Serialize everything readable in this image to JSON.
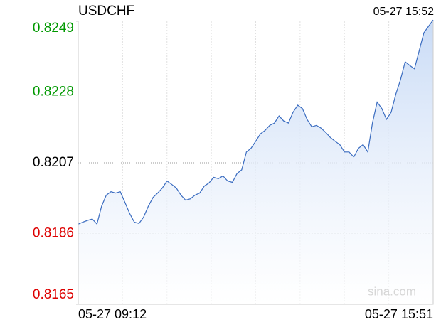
{
  "chart_data": {
    "type": "line",
    "title": "USDCHF",
    "subtitle": "05-27 15:52",
    "watermark": "sina.com",
    "categories": [
      "05-27 09:12",
      null,
      null,
      null,
      null,
      null,
      null,
      null,
      null,
      null,
      null,
      null,
      null,
      null,
      null,
      null,
      null,
      null,
      null,
      null,
      null,
      null,
      null,
      null,
      null,
      null,
      null,
      null,
      null,
      null,
      null,
      null,
      null,
      null,
      null,
      null,
      null,
      null,
      null,
      null,
      null,
      null,
      null,
      null,
      null,
      null,
      null,
      null,
      null,
      null,
      null,
      null,
      null,
      null,
      null,
      null,
      null,
      null,
      null,
      null,
      null,
      null,
      null,
      null,
      null,
      null,
      null,
      null,
      null,
      null,
      null,
      null,
      null,
      null,
      null,
      null,
      "05-27 15:51"
    ],
    "series": [
      {
        "name": "USDCHF",
        "color": "#3a6cc0",
        "values": [
          0.81888,
          0.81894,
          0.81899,
          0.81903,
          0.81888,
          0.81941,
          0.81974,
          0.81984,
          0.8198,
          0.81984,
          0.81952,
          0.8192,
          0.81894,
          0.8189,
          0.81909,
          0.81941,
          0.81967,
          0.8198,
          0.81995,
          0.82016,
          0.82006,
          0.81995,
          0.81974,
          0.81959,
          0.81963,
          0.81974,
          0.8198,
          0.82001,
          0.8201,
          0.82027,
          0.82023,
          0.82031,
          0.82016,
          0.82012,
          0.82038,
          0.82049,
          0.82102,
          0.82113,
          0.82134,
          0.82156,
          0.82166,
          0.82181,
          0.82188,
          0.82209,
          0.82194,
          0.82188,
          0.8222,
          0.82241,
          0.82231,
          0.82199,
          0.82177,
          0.82181,
          0.82173,
          0.8216,
          0.82145,
          0.82134,
          0.82124,
          0.82102,
          0.82102,
          0.82087,
          0.82113,
          0.82124,
          0.82102,
          0.82188,
          0.8225,
          0.82231,
          0.82199,
          0.8222,
          0.82274,
          0.82316,
          0.8237,
          0.82359,
          0.82349,
          0.82402,
          0.82456,
          0.82475,
          0.82494
        ]
      }
    ],
    "ylim": [
      0.8165,
      0.8249
    ],
    "yticks": [
      0.8165,
      0.8186,
      0.8207,
      0.8228,
      0.8249
    ],
    "ytick_colors": [
      "#dd0000",
      "#dd0000",
      "#000000",
      "#009900",
      "#009900"
    ],
    "grid": true
  }
}
